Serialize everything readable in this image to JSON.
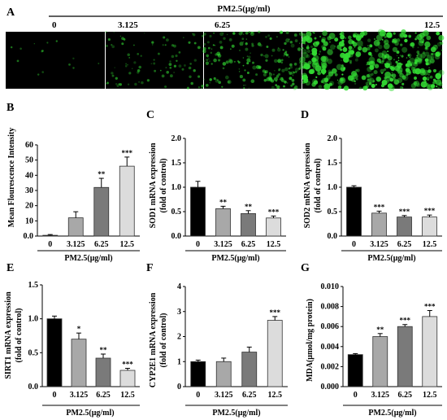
{
  "header": {
    "label": "PM2.5(μg/ml)"
  },
  "panel_a": {
    "letter": "A",
    "doses": [
      "0",
      "3.125",
      "6.25",
      "12.5"
    ],
    "fluorescence_level": [
      0.02,
      0.2,
      0.45,
      1.0
    ],
    "colors": {
      "background": "#000000",
      "signal": "#33dd33"
    }
  },
  "colors": {
    "bar_0": "#000000",
    "bar_3125": "#a8a8a8",
    "bar_625": "#7a7a7a",
    "bar_125": "#dcdcdc",
    "bar_edge": "#333333"
  },
  "chart_data": [
    {
      "panel": "B",
      "type": "bar",
      "categories": [
        "0",
        "3.125",
        "6.25",
        "12.5"
      ],
      "values": [
        0.5,
        12,
        32,
        46
      ],
      "errors": [
        0.5,
        4,
        6,
        6
      ],
      "significance": [
        "",
        "",
        "**",
        "***"
      ],
      "ylabel": "Mean Flourescence Intensity",
      "xlabel": "PM2.5(μg/ml)",
      "ylim": [
        0,
        60
      ],
      "yticks": [
        "0.0",
        "10",
        "20",
        "30",
        "40",
        "50",
        "60"
      ]
    },
    {
      "panel": "C",
      "type": "bar",
      "categories": [
        "0",
        "3.125",
        "6.25",
        "12.5"
      ],
      "values": [
        1.0,
        0.56,
        0.46,
        0.37
      ],
      "errors": [
        0.12,
        0.05,
        0.06,
        0.04
      ],
      "significance": [
        "",
        "**",
        "**",
        "***"
      ],
      "ylabel": "SOD1 mRNA expression",
      "ylabel2": "(fold of control)",
      "xlabel": "PM2.5(μg/ml)",
      "ylim": [
        0,
        2.0
      ],
      "yticks": [
        "0.0",
        "0.5",
        "1.0",
        "1.5",
        "2.0"
      ]
    },
    {
      "panel": "D",
      "type": "bar",
      "categories": [
        "0",
        "3.125",
        "6.25",
        "12.5"
      ],
      "values": [
        1.0,
        0.47,
        0.39,
        0.39
      ],
      "errors": [
        0.03,
        0.04,
        0.03,
        0.04
      ],
      "significance": [
        "",
        "***",
        "***",
        "***"
      ],
      "ylabel": "SOD2 mRNA expression",
      "ylabel2": "(fold of control)",
      "xlabel": "PM2.5(μg/ml)",
      "ylim": [
        0,
        2.0
      ],
      "yticks": [
        "0.0",
        "0.5",
        "1.0",
        "1.5",
        "2.0"
      ]
    },
    {
      "panel": "E",
      "type": "bar",
      "categories": [
        "0",
        "3.125",
        "6.25",
        "12.5"
      ],
      "values": [
        1.0,
        0.7,
        0.42,
        0.24
      ],
      "errors": [
        0.04,
        0.09,
        0.06,
        0.03
      ],
      "significance": [
        "",
        "*",
        "**",
        "***"
      ],
      "ylabel": "SIRT1 mRNA expression",
      "ylabel2": "(fold of control)",
      "xlabel": "PM2.5(μg/ml)",
      "ylim": [
        0,
        1.5
      ],
      "yticks": [
        "0.0",
        "0.5",
        "1.0",
        "1.5"
      ]
    },
    {
      "panel": "F",
      "type": "bar",
      "categories": [
        "0",
        "3.125",
        "6.25",
        "12.5"
      ],
      "values": [
        1.0,
        1.0,
        1.38,
        2.65
      ],
      "errors": [
        0.06,
        0.14,
        0.2,
        0.15
      ],
      "significance": [
        "",
        "",
        "",
        "***"
      ],
      "ylabel": "CYP2E1 mRNA expression",
      "ylabel2": "(fold of control)",
      "xlabel": "PM2.5(μg/ml)",
      "ylim": [
        0,
        4
      ],
      "yticks": [
        "0",
        "1",
        "2",
        "3",
        "4"
      ]
    },
    {
      "panel": "G",
      "type": "bar",
      "categories": [
        "0",
        "3.125",
        "6.25",
        "12.5"
      ],
      "values": [
        0.0032,
        0.005,
        0.006,
        0.007
      ],
      "errors": [
        0.0001,
        0.0003,
        0.0002,
        0.0006
      ],
      "significance": [
        "",
        "**",
        "***",
        "***"
      ],
      "ylabel": "MDA(μmol/mg protein)",
      "xlabel": "PM2.5(μg/ml)",
      "ylim": [
        0,
        0.01
      ],
      "yticks": [
        "0.000",
        "0.002",
        "0.004",
        "0.006",
        "0.008",
        "0.010"
      ]
    }
  ]
}
